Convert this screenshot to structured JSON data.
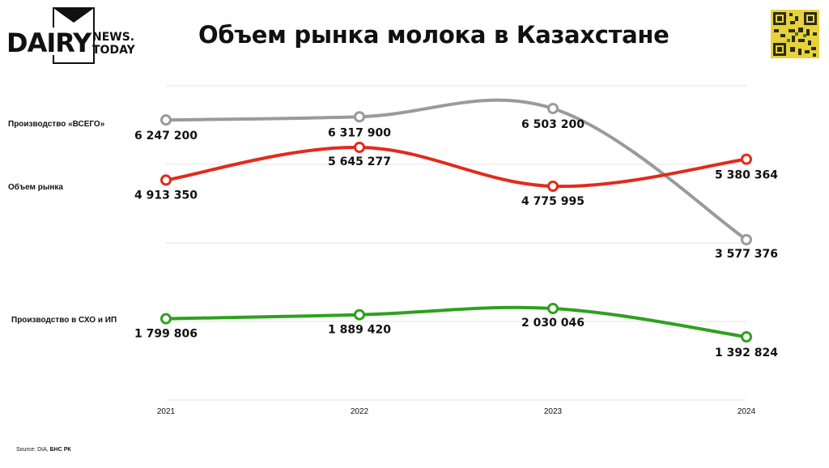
{
  "logo": {
    "brand": "DAIRY",
    "line1": "NEWS.",
    "line2": "TODAY"
  },
  "title": "Объем рынка молока в Казахстане",
  "source": {
    "prefix": "Source: DIA,",
    "name": "БНС РК"
  },
  "colors": {
    "grey": "#9a9a9a",
    "red": "#e32a1c",
    "green": "#2ea11e",
    "grid": "#e4e4e4"
  },
  "chart_data": {
    "type": "line",
    "categories": [
      "2021",
      "2022",
      "2023",
      "2024"
    ],
    "grid": true,
    "series": [
      {
        "name": "Производство «ВСЕГО»",
        "values": [
          6247200,
          6317900,
          6503200,
          3577376
        ],
        "labels": [
          "6 247 200",
          "6 317 900",
          "6 503 200",
          "3 577 376"
        ],
        "color": "#9a9a9a"
      },
      {
        "name": "Объем рынка",
        "values": [
          4913350,
          5645277,
          4775995,
          5380364
        ],
        "labels": [
          "4 913 350",
          "5 645 277",
          "4 775 995",
          "5 380 364"
        ],
        "color": "#e32a1c"
      },
      {
        "name": "Производство в СХО и ИП",
        "values": [
          1799806,
          1889420,
          2030046,
          1392824
        ],
        "labels": [
          "1 799 806",
          "1 889 420",
          "2 030 046",
          "1 392 824"
        ],
        "color": "#2ea11e"
      }
    ]
  }
}
